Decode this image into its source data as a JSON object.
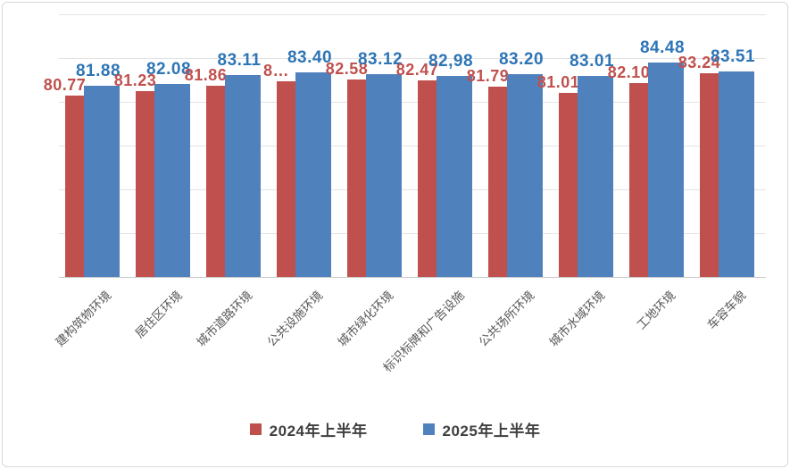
{
  "chart_data": {
    "type": "bar",
    "title": "",
    "categories": [
      "建构筑物环境",
      "居住区环境",
      "城市道路环境",
      "公共设施环境",
      "城市绿化环境",
      "标识标牌和广告设施",
      "公共场所环境",
      "城市水域环境",
      "工地环境",
      "车容车貌"
    ],
    "series": [
      {
        "name": "2024年上半年",
        "color": "#C0504D",
        "label_color": "#C0504D",
        "values": [
          80.77,
          81.23,
          81.86,
          82.35,
          82.58,
          82.47,
          81.79,
          81.01,
          82.1,
          83.24
        ],
        "labels": [
          "80.77",
          "81.23",
          "81.86",
          "8…",
          "82.58",
          "82.47",
          "81.79",
          "81.01",
          "82.10",
          "83.24"
        ]
      },
      {
        "name": "2025年上半年",
        "color": "#4F81BD",
        "label_color": "#2E75B6",
        "values": [
          81.88,
          82.08,
          83.11,
          83.4,
          83.12,
          82.98,
          83.2,
          83.01,
          84.48,
          83.51
        ],
        "labels": [
          "81.88",
          "82.08",
          "83.11",
          "83.40",
          "83.12",
          "82,98",
          "83.20",
          "83.01",
          "84.48",
          "83.51"
        ]
      }
    ],
    "ylim": [
      60,
      90
    ],
    "gridline_step": 5,
    "grid": "horizontal",
    "y_axis_tick_labels_visible": false,
    "legend_position": "bottom"
  },
  "colors": {
    "gridline": "#e3e3e3",
    "axis_line": "#c9c9c9",
    "category_text": "#595959",
    "legend_text": "#3f3f3f",
    "border": "#d8d8d8",
    "background": "#ffffff"
  }
}
